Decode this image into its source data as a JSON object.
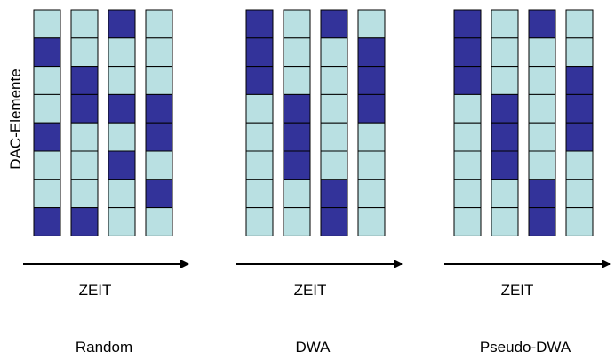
{
  "y_axis_label": "DAC-Elemente",
  "colors": {
    "active": "#33339a",
    "inactive": "#b9e0e2",
    "border": "#000000",
    "arrow": "#000000"
  },
  "groups": [
    {
      "method_label": "Random",
      "time_label": "ZEIT",
      "columns": [
        [
          0,
          1,
          0,
          0,
          1,
          0,
          0,
          1
        ],
        [
          0,
          0,
          1,
          1,
          0,
          0,
          0,
          1
        ],
        [
          1,
          0,
          0,
          1,
          0,
          1,
          0,
          0
        ],
        [
          0,
          0,
          0,
          1,
          1,
          0,
          1,
          0
        ]
      ]
    },
    {
      "method_label": "DWA",
      "time_label": "ZEIT",
      "columns": [
        [
          1,
          1,
          1,
          0,
          0,
          0,
          0,
          0
        ],
        [
          0,
          0,
          0,
          1,
          1,
          1,
          0,
          0
        ],
        [
          1,
          0,
          0,
          0,
          0,
          0,
          1,
          1
        ],
        [
          0,
          1,
          1,
          1,
          0,
          0,
          0,
          0
        ]
      ]
    },
    {
      "method_label": "Pseudo-DWA",
      "time_label": "ZEIT",
      "columns": [
        [
          1,
          1,
          1,
          0,
          0,
          0,
          0,
          0
        ],
        [
          0,
          0,
          0,
          1,
          1,
          1,
          0,
          0
        ],
        [
          1,
          0,
          0,
          0,
          0,
          0,
          1,
          1
        ],
        [
          0,
          0,
          1,
          1,
          1,
          0,
          0,
          0
        ]
      ]
    }
  ]
}
